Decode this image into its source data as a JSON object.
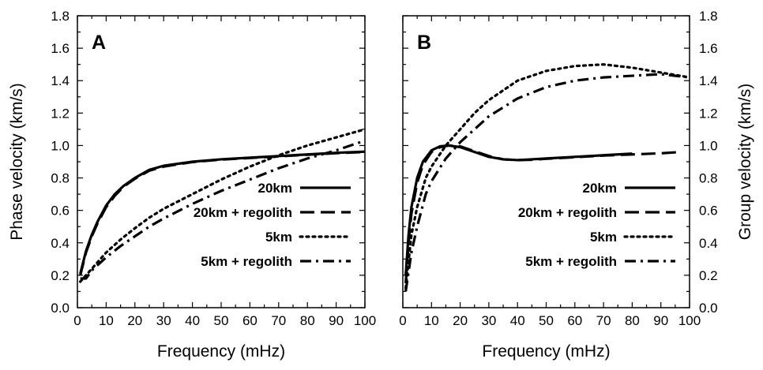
{
  "chart_data": [
    {
      "type": "line",
      "panel_label": "A",
      "xlabel": "Frequency (mHz)",
      "ylabel": "Phase velocity (km/s)",
      "xlim": [
        0,
        100
      ],
      "ylim": [
        0,
        1.8
      ],
      "x_ticks": [
        0,
        10,
        20,
        30,
        40,
        50,
        60,
        70,
        80,
        90,
        100
      ],
      "y_ticks": [
        "0.0",
        "0.2",
        "0.4",
        "0.6",
        "0.8",
        "1.0",
        "1.2",
        "1.4",
        "1.6",
        "1.8"
      ],
      "y_axis_side": "left",
      "legend_position": "bottom-right",
      "series": [
        {
          "name": "20km",
          "style": "solid",
          "x": [
            1,
            3,
            5,
            7,
            10,
            13,
            16,
            20,
            25,
            30,
            40,
            50,
            60,
            70,
            80,
            90,
            100
          ],
          "y": [
            0.21,
            0.35,
            0.45,
            0.53,
            0.63,
            0.7,
            0.75,
            0.8,
            0.85,
            0.875,
            0.9,
            0.915,
            0.925,
            0.935,
            0.945,
            0.955,
            0.962
          ]
        },
        {
          "name": "20km + regolith",
          "style": "dashed",
          "x": [
            1,
            3,
            5,
            7,
            10,
            13,
            16,
            20,
            25,
            30,
            40,
            50,
            60,
            70,
            80,
            90,
            100
          ],
          "y": [
            0.2,
            0.34,
            0.44,
            0.52,
            0.62,
            0.69,
            0.745,
            0.795,
            0.845,
            0.87,
            0.898,
            0.913,
            0.923,
            0.933,
            0.943,
            0.953,
            0.96
          ]
        },
        {
          "name": "5km",
          "style": "dotted",
          "x": [
            1,
            3,
            5,
            10,
            15,
            20,
            25,
            30,
            40,
            50,
            60,
            70,
            80,
            90,
            100
          ],
          "y": [
            0.16,
            0.2,
            0.24,
            0.34,
            0.42,
            0.49,
            0.555,
            0.61,
            0.7,
            0.79,
            0.87,
            0.94,
            1.0,
            1.05,
            1.1
          ]
        },
        {
          "name": "5km + regolith",
          "style": "dashdot",
          "x": [
            1,
            3,
            5,
            10,
            15,
            20,
            25,
            30,
            40,
            50,
            60,
            70,
            80,
            90,
            100
          ],
          "y": [
            0.18,
            0.18,
            0.23,
            0.31,
            0.38,
            0.44,
            0.5,
            0.55,
            0.64,
            0.72,
            0.79,
            0.86,
            0.92,
            0.97,
            1.03
          ]
        }
      ]
    },
    {
      "type": "line",
      "panel_label": "B",
      "xlabel": "Frequency (mHz)",
      "ylabel": "Group velocity (km/s)",
      "xlim": [
        0,
        100
      ],
      "ylim": [
        0,
        1.8
      ],
      "x_ticks": [
        0,
        10,
        20,
        30,
        40,
        50,
        60,
        70,
        80,
        90,
        100
      ],
      "y_ticks": [
        "0.0",
        "0.2",
        "0.4",
        "0.6",
        "0.8",
        "1.0",
        "1.2",
        "1.4",
        "1.6",
        "1.8"
      ],
      "y_axis_side": "right",
      "legend_position": "bottom-right",
      "series": [
        {
          "name": "20km",
          "style": "solid",
          "x": [
            1,
            2,
            3,
            5,
            7,
            10,
            13,
            16,
            20,
            25,
            30,
            35,
            40,
            45,
            50,
            60,
            70,
            80
          ],
          "y": [
            0.2,
            0.45,
            0.62,
            0.8,
            0.9,
            0.97,
            0.995,
            1.0,
            0.99,
            0.96,
            0.93,
            0.915,
            0.91,
            0.915,
            0.92,
            0.93,
            0.94,
            0.95
          ]
        },
        {
          "name": "20km + regolith",
          "style": "dashed",
          "x": [
            1,
            2,
            3,
            5,
            7,
            10,
            13,
            16,
            20,
            25,
            30,
            35,
            40,
            45,
            50,
            60,
            70,
            80,
            90,
            97
          ],
          "y": [
            0.15,
            0.4,
            0.58,
            0.77,
            0.88,
            0.96,
            0.99,
            1.0,
            0.995,
            0.965,
            0.935,
            0.915,
            0.91,
            0.912,
            0.918,
            0.928,
            0.938,
            0.945,
            0.952,
            0.96
          ]
        },
        {
          "name": "5km",
          "style": "dotted",
          "x": [
            1,
            3,
            5,
            8,
            10,
            15,
            20,
            25,
            30,
            40,
            50,
            60,
            70,
            80,
            90,
            100
          ],
          "y": [
            0.12,
            0.45,
            0.62,
            0.8,
            0.87,
            1.0,
            1.1,
            1.2,
            1.28,
            1.4,
            1.46,
            1.49,
            1.5,
            1.48,
            1.45,
            1.42
          ]
        },
        {
          "name": "5km + regolith",
          "style": "dashdot",
          "x": [
            1,
            3,
            5,
            8,
            10,
            15,
            20,
            25,
            30,
            40,
            50,
            60,
            70,
            80,
            90,
            100
          ],
          "y": [
            0.1,
            0.34,
            0.5,
            0.7,
            0.78,
            0.92,
            1.02,
            1.1,
            1.18,
            1.29,
            1.36,
            1.4,
            1.42,
            1.43,
            1.44,
            1.42
          ]
        }
      ]
    }
  ]
}
